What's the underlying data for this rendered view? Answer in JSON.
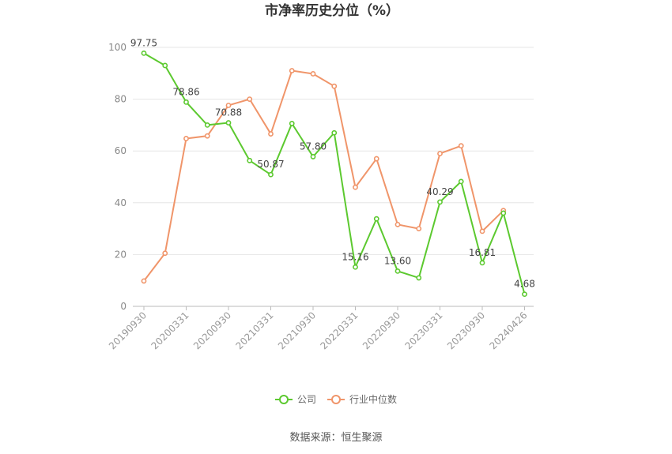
{
  "chart_data": {
    "type": "line",
    "title": "市净率历史分位（%）",
    "ylim": [
      0,
      100
    ],
    "yticks": [
      0,
      20,
      40,
      60,
      80,
      100
    ],
    "grid": true,
    "legend_position": "bottom",
    "x_labels": [
      "20190930",
      "20200331",
      "20200930",
      "20210331",
      "20210930",
      "20220331",
      "20220930",
      "20230331",
      "20230930",
      "20240426"
    ],
    "series": [
      {
        "name": "公司",
        "color": "#5cc92f",
        "values": [
          97.75,
          93.0,
          78.86,
          70.0,
          70.88,
          56.3,
          50.87,
          70.6,
          57.8,
          67.0,
          15.16,
          33.8,
          13.6,
          11.0,
          40.29,
          48.2,
          16.81,
          36.0,
          4.68
        ],
        "labels": [
          "97.75",
          "",
          "78.86",
          "",
          "70.88",
          "",
          "50.87",
          "",
          "57.80",
          "",
          "15.16",
          "",
          "13.60",
          "",
          "40.29",
          "",
          "16.81",
          "",
          "4.68"
        ]
      },
      {
        "name": "行业中位数",
        "color": "#f0956a",
        "values": [
          9.8,
          20.5,
          64.8,
          65.8,
          77.6,
          80.0,
          66.6,
          91.0,
          89.8,
          85.0,
          46.0,
          57.0,
          31.6,
          30.0,
          59.0,
          62.0,
          29.0,
          37.0
        ]
      }
    ]
  },
  "source": "数据来源：恒生聚源"
}
